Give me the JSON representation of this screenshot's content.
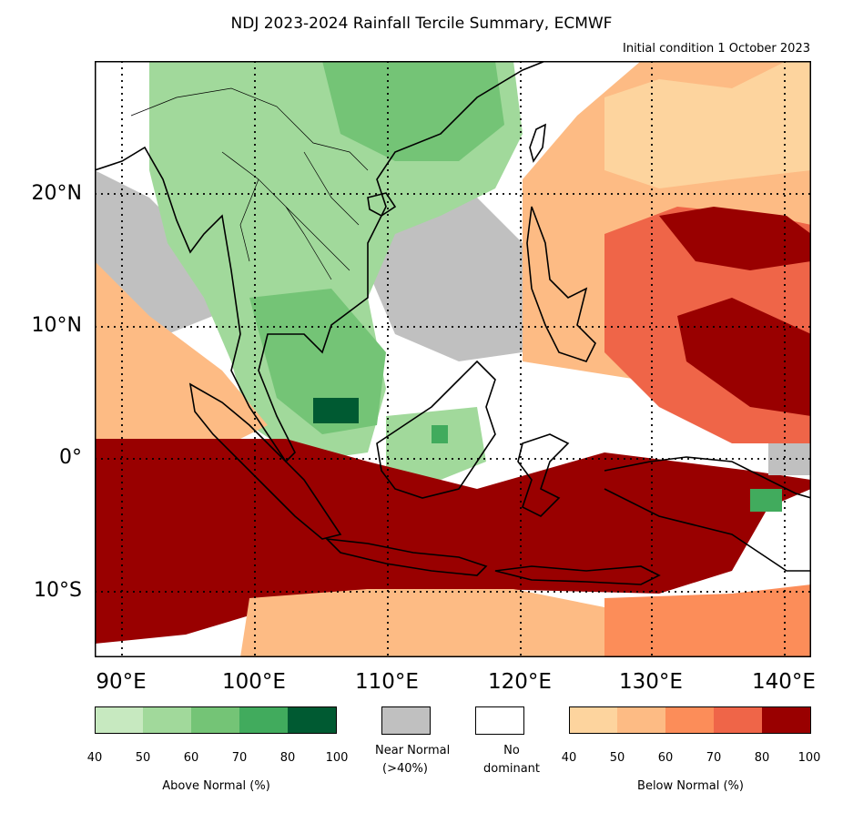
{
  "map": {
    "title": "NDJ 2023-2024 Rainfall Tercile Summary, ECMWF",
    "subtitle": "Initial condition 1 October 2023",
    "lat_labels": [
      "20°N",
      "10°N",
      "0°",
      "10°S"
    ],
    "lon_labels": [
      "90°E",
      "100°E",
      "110°E",
      "120°E",
      "130°E",
      "140°E"
    ],
    "extent": {
      "lon_min": 88,
      "lon_max": 142,
      "lat_min": -15,
      "lat_max": 30
    },
    "colors": {
      "above": [
        "#c7e9c0",
        "#a1d99b",
        "#74c476",
        "#41ab5d",
        "#005a32"
      ],
      "near_normal": "#c0c0c0",
      "no_dominant": "#ffffff",
      "below": [
        "#fdd49e",
        "#fdbb84",
        "#fc8d59",
        "#ef6548",
        "#990000"
      ]
    }
  },
  "legend": {
    "above": {
      "label": "Above Normal (%)",
      "ticks": [
        "40",
        "50",
        "60",
        "70",
        "80",
        "100"
      ]
    },
    "near": {
      "label_1": "Near Normal",
      "label_2": "(>40%)"
    },
    "nodom": {
      "label_1": "No",
      "label_2": "dominant"
    },
    "below": {
      "label": "Below Normal (%)",
      "ticks": [
        "40",
        "50",
        "60",
        "70",
        "80",
        "100"
      ]
    }
  }
}
